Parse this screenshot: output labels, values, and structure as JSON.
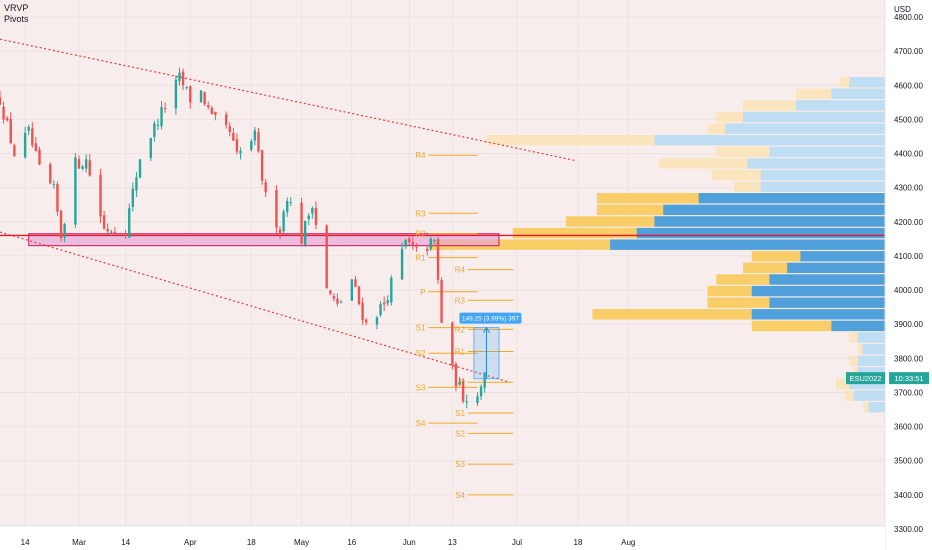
{
  "indicators": [
    "VRVP",
    "Pivots"
  ],
  "currency": "USD",
  "colors": {
    "background": "#f8eded",
    "up": "#26a69a",
    "down": "#ef5350",
    "channel": "#e53935",
    "zone_fill": "#e3a1d6",
    "zone_border": "#c2185b",
    "pivot": "#f5a623",
    "vp_blue_light": "#bcdcf5",
    "vp_blue_dark": "#3d9be9",
    "vp_orange_light": "#fbe3b8",
    "vp_orange_dark": "#f9c74f",
    "measure": "#42a5f5",
    "price_tag": "#26a69a"
  },
  "chart_data": {
    "type": "candlestick",
    "symbol": "ESU2022",
    "current_price_label": "ESU2022",
    "current_time_label": "10:33:51",
    "ylim": [
      3300,
      4830
    ],
    "y_ticks": [
      3300,
      3400,
      3500,
      3600,
      3700,
      3800,
      3900,
      4000,
      4100,
      4200,
      4300,
      4400,
      4500,
      4600,
      4700,
      4800
    ],
    "y_tick_labels": [
      "3300.00",
      "3400.00",
      "3500.00",
      "3600.00",
      "3700.00",
      "3800.00",
      "3900.00",
      "4000.00",
      "4100.00",
      "4200.00",
      "4300.00",
      "4400.00",
      "4500.00",
      "4600.00",
      "4700.00",
      "4800.00"
    ],
    "x_ticks": [
      {
        "label": "14",
        "date": "2022-02-14"
      },
      {
        "label": "Mar",
        "date": "2022-03-01"
      },
      {
        "label": "14",
        "date": "2022-03-14"
      },
      {
        "label": "Apr",
        "date": "2022-04-01"
      },
      {
        "label": "18",
        "date": "2022-04-18"
      },
      {
        "label": "May",
        "date": "2022-05-02"
      },
      {
        "label": "16",
        "date": "2022-05-16"
      },
      {
        "label": "Jun",
        "date": "2022-06-01"
      },
      {
        "label": "13",
        "date": "2022-06-13"
      },
      {
        "label": "Jul",
        "date": "2022-07-01"
      },
      {
        "label": "18",
        "date": "2022-07-18"
      },
      {
        "label": "Aug",
        "date": "2022-08-01"
      }
    ],
    "close_path": [
      [
        "2022-02-07",
        4560
      ],
      [
        "2022-02-11",
        4400
      ],
      [
        "2022-02-15",
        4460
      ],
      [
        "2022-02-18",
        4350
      ],
      [
        "2022-02-22",
        4290
      ],
      [
        "2022-02-24",
        4160
      ],
      [
        "2022-02-28",
        4370
      ],
      [
        "2022-03-03",
        4380
      ],
      [
        "2022-03-08",
        4180
      ],
      [
        "2022-03-14",
        4180
      ],
      [
        "2022-03-18",
        4390
      ],
      [
        "2022-03-24",
        4520
      ],
      [
        "2022-03-29",
        4620
      ],
      [
        "2022-04-01",
        4560
      ],
      [
        "2022-04-04",
        4580
      ],
      [
        "2022-04-07",
        4500
      ],
      [
        "2022-04-12",
        4460
      ],
      [
        "2022-04-14",
        4390
      ],
      [
        "2022-04-19",
        4450
      ],
      [
        "2022-04-22",
        4270
      ],
      [
        "2022-04-26",
        4180
      ],
      [
        "2022-04-28",
        4280
      ],
      [
        "2022-05-02",
        4150
      ],
      [
        "2022-05-05",
        4260
      ],
      [
        "2022-05-09",
        4000
      ],
      [
        "2022-05-12",
        3950
      ],
      [
        "2022-05-16",
        4030
      ],
      [
        "2022-05-18",
        3960
      ],
      [
        "2022-05-20",
        3900
      ],
      [
        "2022-05-25",
        3960
      ],
      [
        "2022-05-31",
        4140
      ],
      [
        "2022-06-03",
        4110
      ],
      [
        "2022-06-08",
        4140
      ],
      [
        "2022-06-10",
        3910
      ],
      [
        "2022-06-13",
        3760
      ],
      [
        "2022-06-16",
        3690
      ],
      [
        "2022-06-20",
        3690
      ],
      [
        "2022-06-22",
        3770
      ]
    ],
    "channel_lines": [
      {
        "from": [
          "2022-02-07",
          4735
        ],
        "to": [
          "2022-07-17",
          4380
        ]
      },
      {
        "from": [
          "2022-02-07",
          4170
        ],
        "to": [
          "2022-06-29",
          3730
        ]
      }
    ],
    "support_zone": {
      "low": 4130,
      "high": 4165,
      "from": "2022-02-15",
      "to": "2022-06-26"
    },
    "horizontal_line": {
      "price": 4160
    },
    "pivot_sets": [
      {
        "from": "2022-06-03",
        "to": "2022-06-20",
        "levels": [
          {
            "label": "R4",
            "value": 4395
          },
          {
            "label": "R3",
            "value": 4225
          },
          {
            "label": "R2",
            "value": 4165
          },
          {
            "label": "R1",
            "value": 4095
          },
          {
            "label": "P",
            "value": 3995
          },
          {
            "label": "S1",
            "value": 3890
          },
          {
            "label": "S2",
            "value": 3815
          },
          {
            "label": "S3",
            "value": 3715
          },
          {
            "label": "S4",
            "value": 3610
          }
        ]
      },
      {
        "from": "2022-06-14",
        "to": "2022-06-30",
        "levels": [
          {
            "label": "R4",
            "value": 4060
          },
          {
            "label": "R3",
            "value": 3970
          },
          {
            "label": "R2",
            "value": 3885
          },
          {
            "label": "R1",
            "value": 3820
          },
          {
            "label": "P",
            "value": 3730
          },
          {
            "label": "S1",
            "value": 3640
          },
          {
            "label": "S2",
            "value": 3580
          },
          {
            "label": "S3",
            "value": 3490
          },
          {
            "label": "S4",
            "value": 3400
          }
        ]
      }
    ],
    "measure": {
      "label": "149.25 (3.99%) 397",
      "low": 3740,
      "high": 3890,
      "from": "2022-06-19",
      "to": "2022-06-26"
    },
    "volume_profile": {
      "bin_size": 34,
      "bins": [
        {
          "low": 3640,
          "up": 0.024,
          "down": 0.018
        },
        {
          "low": 3674,
          "up": 0.045,
          "down": 0.035
        },
        {
          "low": 3708,
          "up": 0.055,
          "down": 0.04
        },
        {
          "low": 3742,
          "up": 0.035,
          "down": 0.03
        },
        {
          "low": 3776,
          "up": 0.04,
          "down": 0.03
        },
        {
          "low": 3810,
          "up": 0.03,
          "down": 0.025
        },
        {
          "low": 3844,
          "up": 0.04,
          "down": 0.03
        },
        {
          "low": 3878,
          "up": 0.15,
          "down": 0.06
        },
        {
          "low": 3912,
          "up": 0.33,
          "down": 0.15
        },
        {
          "low": 3946,
          "up": 0.2,
          "down": 0.13
        },
        {
          "low": 3980,
          "up": 0.2,
          "down": 0.15
        },
        {
          "low": 4014,
          "up": 0.19,
          "down": 0.13
        },
        {
          "low": 4048,
          "up": 0.16,
          "down": 0.11
        },
        {
          "low": 4082,
          "up": 0.15,
          "down": 0.095
        },
        {
          "low": 4116,
          "up": 0.515,
          "down": 0.31
        },
        {
          "low": 4150,
          "up": 0.42,
          "down": 0.28
        },
        {
          "low": 4184,
          "up": 0.36,
          "down": 0.26
        },
        {
          "low": 4218,
          "up": 0.325,
          "down": 0.25
        },
        {
          "low": 4252,
          "up": 0.325,
          "down": 0.21
        },
        {
          "low": 4286,
          "up": 0.17,
          "down": 0.14
        },
        {
          "low": 4320,
          "up": 0.195,
          "down": 0.14
        },
        {
          "low": 4354,
          "up": 0.255,
          "down": 0.155
        },
        {
          "low": 4388,
          "up": 0.19,
          "down": 0.13
        },
        {
          "low": 4422,
          "up": 0.45,
          "down": 0.26
        },
        {
          "low": 4456,
          "up": 0.2,
          "down": 0.18
        },
        {
          "low": 4490,
          "up": 0.19,
          "down": 0.16
        },
        {
          "low": 4524,
          "up": 0.16,
          "down": 0.1
        },
        {
          "low": 4558,
          "up": 0.1,
          "down": 0.06
        },
        {
          "low": 4592,
          "up": 0.05,
          "down": 0.04
        }
      ]
    }
  }
}
